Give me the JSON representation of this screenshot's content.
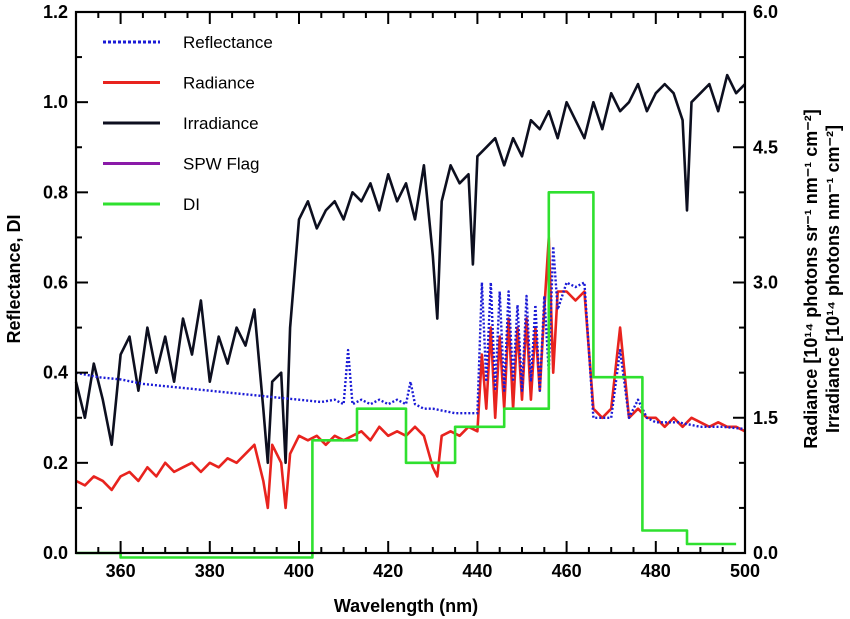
{
  "chart_data": {
    "type": "line",
    "xlabel": "Wavelength (nm)",
    "ylabel_left": "Reflectance, DI",
    "ylabel_right_1": "Radiance [10¹⁴ photons sr⁻¹ nm⁻¹ cm⁻²]",
    "ylabel_right_2": "Irradiance [10¹⁴ photons nm⁻¹ cm⁻²]",
    "xlim": [
      350,
      500
    ],
    "ylim_left": [
      0,
      1.2
    ],
    "ylim_right": [
      0,
      6.0
    ],
    "x_ticks": [
      "360",
      "380",
      "400",
      "420",
      "440",
      "460",
      "480",
      "500"
    ],
    "y_left_ticks": [
      "0.0",
      "0.2",
      "0.4",
      "0.6",
      "0.8",
      "1.0",
      "1.2"
    ],
    "y_right_ticks": [
      "0.0",
      "1.5",
      "3.0",
      "4.5",
      "6.0"
    ],
    "legend_position": "top-left",
    "legend": [
      {
        "name": "Reflectance",
        "color": "#1a1ad6",
        "style": "dotted"
      },
      {
        "name": "Radiance",
        "color": "#e8231e",
        "style": "solid"
      },
      {
        "name": "Irradiance",
        "color": "#0d0f1f",
        "style": "solid"
      },
      {
        "name": "SPW Flag",
        "color": "#8a1aa8",
        "style": "solid"
      },
      {
        "name": "DI",
        "color": "#2fe02f",
        "style": "solid"
      }
    ],
    "series": [
      {
        "name": "Irradiance",
        "axis": "right",
        "color": "#0d0f1f",
        "x": [
          350,
          352,
          354,
          356,
          358,
          360,
          362,
          364,
          366,
          368,
          370,
          372,
          374,
          376,
          378,
          380,
          382,
          384,
          386,
          388,
          390,
          392,
          393,
          394,
          396,
          397,
          398,
          400,
          402,
          404,
          406,
          408,
          410,
          412,
          414,
          416,
          418,
          420,
          422,
          424,
          426,
          428,
          430,
          431,
          432,
          434,
          436,
          438,
          439,
          440,
          442,
          444,
          446,
          448,
          450,
          452,
          454,
          456,
          458,
          460,
          462,
          464,
          466,
          468,
          470,
          472,
          474,
          476,
          478,
          480,
          482,
          484,
          486,
          487,
          488,
          490,
          492,
          494,
          496,
          498,
          500
        ],
        "y": [
          1.9,
          1.5,
          2.1,
          1.7,
          1.2,
          2.2,
          2.4,
          1.8,
          2.5,
          2.0,
          2.4,
          1.9,
          2.6,
          2.2,
          2.8,
          1.9,
          2.4,
          2.1,
          2.5,
          2.3,
          2.7,
          1.6,
          1.0,
          1.9,
          2.0,
          1.0,
          2.5,
          3.7,
          3.9,
          3.6,
          3.8,
          3.9,
          3.7,
          4.0,
          3.9,
          4.1,
          3.8,
          4.2,
          3.9,
          4.1,
          3.7,
          4.3,
          3.3,
          2.6,
          3.9,
          4.3,
          4.1,
          4.2,
          3.2,
          4.4,
          4.5,
          4.6,
          4.3,
          4.6,
          4.4,
          4.8,
          4.7,
          4.9,
          4.6,
          5.0,
          4.8,
          4.6,
          5.0,
          4.7,
          5.1,
          4.9,
          5.0,
          5.2,
          4.9,
          5.1,
          5.2,
          5.1,
          4.8,
          3.8,
          5.0,
          5.1,
          5.2,
          4.9,
          5.3,
          5.1,
          5.2
        ]
      },
      {
        "name": "Radiance",
        "axis": "right",
        "color": "#e8231e",
        "x": [
          350,
          352,
          354,
          356,
          358,
          360,
          362,
          364,
          366,
          368,
          370,
          372,
          374,
          376,
          378,
          380,
          382,
          384,
          386,
          388,
          390,
          392,
          393,
          394,
          396,
          397,
          398,
          400,
          402,
          404,
          406,
          408,
          410,
          412,
          414,
          416,
          418,
          420,
          422,
          424,
          426,
          428,
          430,
          431,
          432,
          434,
          436,
          438,
          440,
          441,
          442,
          443,
          444,
          445,
          446,
          447,
          448,
          449,
          450,
          451,
          452,
          453,
          454,
          455,
          456,
          457,
          458,
          460,
          462,
          464,
          466,
          468,
          470,
          472,
          474,
          476,
          478,
          480,
          482,
          484,
          486,
          488,
          490,
          492,
          494,
          496,
          498,
          500
        ],
        "y": [
          0.8,
          0.75,
          0.85,
          0.8,
          0.7,
          0.85,
          0.9,
          0.8,
          0.95,
          0.85,
          1.0,
          0.9,
          0.95,
          1.0,
          0.9,
          1.0,
          0.95,
          1.05,
          1.0,
          1.1,
          1.2,
          0.8,
          0.5,
          1.2,
          1.0,
          0.5,
          1.1,
          1.3,
          1.25,
          1.3,
          1.2,
          1.3,
          1.25,
          1.3,
          1.35,
          1.25,
          1.4,
          1.3,
          1.35,
          1.3,
          1.4,
          1.3,
          0.95,
          0.85,
          1.3,
          1.35,
          1.3,
          1.4,
          1.35,
          2.2,
          1.6,
          2.5,
          1.5,
          2.4,
          1.6,
          2.6,
          1.6,
          2.5,
          1.7,
          2.6,
          1.7,
          2.5,
          1.8,
          2.7,
          3.5,
          2.0,
          2.9,
          2.9,
          2.8,
          2.9,
          1.6,
          1.5,
          1.6,
          2.5,
          1.5,
          1.6,
          1.5,
          1.5,
          1.4,
          1.5,
          1.4,
          1.5,
          1.45,
          1.4,
          1.45,
          1.4,
          1.4,
          1.35
        ]
      },
      {
        "name": "Reflectance",
        "axis": "left",
        "color": "#1a1ad6",
        "x": [
          350,
          355,
          360,
          365,
          370,
          375,
          380,
          385,
          390,
          395,
          400,
          405,
          408,
          410,
          411,
          412,
          414,
          416,
          418,
          420,
          422,
          424,
          425,
          426,
          428,
          430,
          435,
          440,
          441,
          442,
          443,
          444,
          445,
          446,
          447,
          448,
          449,
          450,
          451,
          452,
          453,
          454,
          455,
          456,
          457,
          458,
          460,
          462,
          464,
          466,
          470,
          472,
          474,
          476,
          478,
          480,
          485,
          490,
          495,
          500
        ],
        "y": [
          0.4,
          0.39,
          0.385,
          0.375,
          0.37,
          0.365,
          0.36,
          0.355,
          0.35,
          0.345,
          0.34,
          0.335,
          0.34,
          0.33,
          0.45,
          0.33,
          0.34,
          0.33,
          0.34,
          0.33,
          0.34,
          0.33,
          0.38,
          0.33,
          0.32,
          0.32,
          0.31,
          0.31,
          0.6,
          0.38,
          0.6,
          0.36,
          0.58,
          0.36,
          0.58,
          0.38,
          0.55,
          0.36,
          0.57,
          0.38,
          0.55,
          0.36,
          0.57,
          0.4,
          0.68,
          0.54,
          0.6,
          0.59,
          0.6,
          0.3,
          0.3,
          0.45,
          0.3,
          0.34,
          0.3,
          0.29,
          0.29,
          0.28,
          0.28,
          0.275
        ]
      },
      {
        "name": "DI",
        "axis": "left",
        "color": "#2fe02f",
        "x": [
          350,
          360,
          360,
          370,
          370,
          380,
          380,
          390,
          390,
          403,
          403,
          413,
          413,
          424,
          424,
          435,
          435,
          446,
          446,
          456,
          456,
          466,
          466,
          477,
          477,
          487,
          487,
          498
        ],
        "y": [
          0.0,
          0.0,
          -0.01,
          -0.01,
          -0.01,
          -0.01,
          -0.01,
          -0.01,
          -0.01,
          -0.01,
          0.25,
          0.25,
          0.32,
          0.32,
          0.2,
          0.2,
          0.28,
          0.28,
          0.32,
          0.32,
          0.8,
          0.8,
          0.39,
          0.39,
          0.05,
          0.05,
          0.02,
          0.02
        ]
      }
    ]
  }
}
